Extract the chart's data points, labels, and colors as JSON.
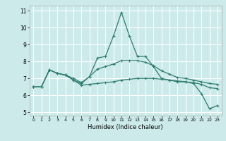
{
  "title": "",
  "xlabel": "Humidex (Indice chaleur)",
  "bg_color": "#cceaea",
  "grid_color": "#ffffff",
  "line_color": "#2e7d6e",
  "xlim": [
    -0.5,
    23.5
  ],
  "ylim": [
    4.8,
    11.3
  ],
  "xticks": [
    0,
    1,
    2,
    3,
    4,
    5,
    6,
    7,
    8,
    9,
    10,
    11,
    12,
    13,
    14,
    15,
    16,
    17,
    18,
    19,
    20,
    21,
    22,
    23
  ],
  "yticks": [
    5,
    6,
    7,
    8,
    9,
    10,
    11
  ],
  "series": [
    {
      "x": [
        0,
        1,
        2,
        3,
        4,
        5,
        6,
        7,
        8,
        9,
        10,
        11,
        12,
        13,
        14,
        15,
        16,
        17,
        18,
        19,
        20,
        21,
        22,
        23
      ],
      "y": [
        6.5,
        6.5,
        7.5,
        7.3,
        7.2,
        6.9,
        6.7,
        7.1,
        8.2,
        8.3,
        9.5,
        10.9,
        9.5,
        8.3,
        8.3,
        7.7,
        7.0,
        6.9,
        6.8,
        6.8,
        6.7,
        6.1,
        5.2,
        5.4
      ]
    },
    {
      "x": [
        0,
        1,
        2,
        3,
        4,
        5,
        6,
        7,
        8,
        9,
        10,
        11,
        12,
        13,
        14,
        15,
        16,
        17,
        18,
        19,
        20,
        21,
        22,
        23
      ],
      "y": [
        6.5,
        6.5,
        7.5,
        7.3,
        7.2,
        7.0,
        6.75,
        7.1,
        7.55,
        7.7,
        7.85,
        8.05,
        8.05,
        8.05,
        7.95,
        7.75,
        7.45,
        7.25,
        7.05,
        7.0,
        6.9,
        6.8,
        6.7,
        6.65
      ]
    },
    {
      "x": [
        0,
        1,
        2,
        3,
        4,
        5,
        6,
        7,
        8,
        9,
        10,
        11,
        12,
        13,
        14,
        15,
        16,
        17,
        18,
        19,
        20,
        21,
        22,
        23
      ],
      "y": [
        6.5,
        6.5,
        7.5,
        7.3,
        7.2,
        6.9,
        6.6,
        6.65,
        6.7,
        6.75,
        6.8,
        6.9,
        6.95,
        7.0,
        7.0,
        7.0,
        6.95,
        6.9,
        6.85,
        6.8,
        6.75,
        6.65,
        6.45,
        6.4
      ]
    }
  ]
}
